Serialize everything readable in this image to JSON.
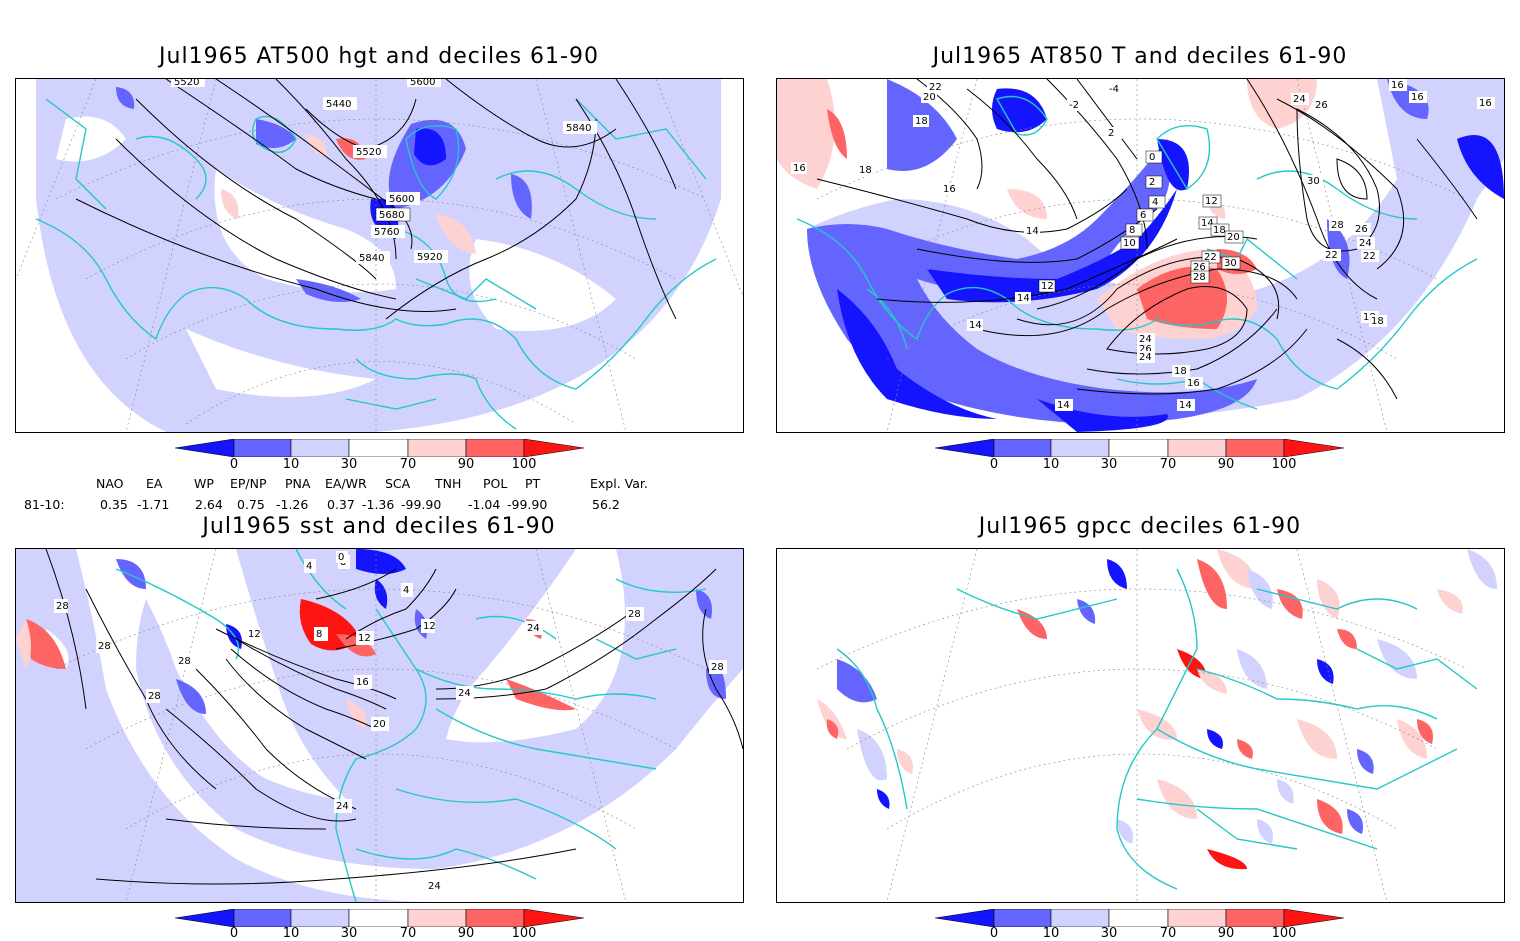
{
  "panels": [
    {
      "title": "Jul1965 AT500 hgt and deciles 61-90",
      "contour_labels": [
        "5520",
        "5440",
        "5600",
        "5840",
        "5520",
        "5600",
        "5680",
        "5760",
        "5840",
        "5920"
      ]
    },
    {
      "title": "Jul1965 AT850 T and deciles 61-90",
      "contour_labels": [
        "22",
        "20",
        "18",
        "16",
        "18",
        "16",
        "14",
        "12",
        "14",
        "14",
        "-2",
        "-4",
        "2",
        "0",
        "2",
        "4",
        "6",
        "8",
        "10",
        "12",
        "14",
        "18",
        "20",
        "22",
        "26",
        "28",
        "30",
        "24",
        "26",
        "24",
        "28",
        "26",
        "24",
        "22",
        "18",
        "16",
        "16",
        "18",
        "14",
        "14",
        "16",
        "16",
        "30",
        "26",
        "24",
        "22",
        "18"
      ]
    },
    {
      "title": "Jul1965 sst and deciles 61-90",
      "contour_labels": [
        "28",
        "28",
        "28",
        "28",
        "12",
        "8",
        "12",
        "16",
        "20",
        "24",
        "24",
        "28",
        "28",
        "24",
        "12",
        "4",
        "8",
        "0",
        "4",
        "24"
      ]
    },
    {
      "title": "Jul1965 gpcc deciles 61-90",
      "contour_labels": []
    }
  ],
  "colorbar": {
    "ticks": [
      "0",
      "10",
      "30",
      "70",
      "90",
      "100"
    ],
    "colors": [
      "#1414ff",
      "#6464ff",
      "#d2d2ff",
      "#ffffff",
      "#ffd2d2",
      "#ff6464",
      "#ff1414"
    ]
  },
  "teleconnections": {
    "header": [
      "NAO",
      "EA",
      "WP",
      "EP/NP",
      "PNA",
      "EA/WR",
      "SCA",
      "TNH",
      "POL",
      "PT",
      "Expl. Var."
    ],
    "row_label": "81-10:",
    "values": [
      "0.35",
      "-1.71",
      "2.64",
      "0.75",
      "-1.26",
      "0.37",
      "-1.36",
      "-99.90",
      "-1.04",
      "-99.90",
      "56.2"
    ]
  }
}
